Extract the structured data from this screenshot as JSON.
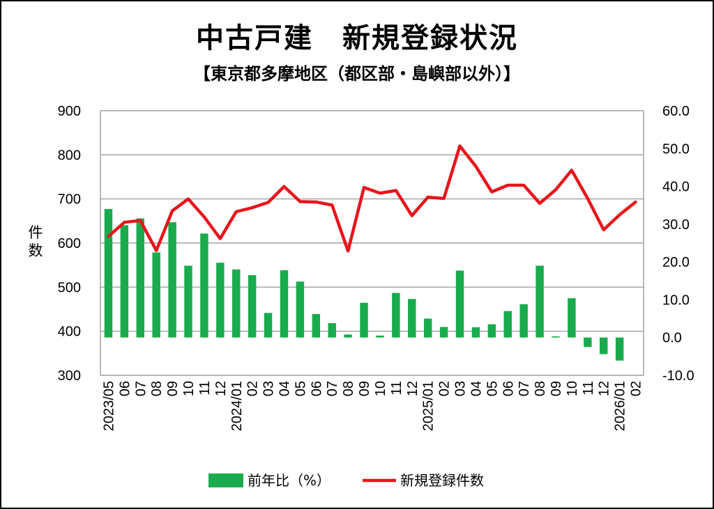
{
  "chart_data": {
    "type": "bar+line",
    "title": "中古戸建　新規登録状況",
    "subtitle": "【東京都多摩地区（都区部・島嶼部以外）】",
    "y_left_title": "件数",
    "y_left_ticks": [
      "900",
      "800",
      "700",
      "600",
      "500",
      "400",
      "300"
    ],
    "y_right_ticks": [
      "60.0",
      "50.0",
      "40.0",
      "30.0",
      "20.0",
      "10.0",
      "0.0",
      "-10.0"
    ],
    "y_left_range": [
      300,
      900
    ],
    "y_right_range": [
      -10,
      60
    ],
    "x_tick_labels": [
      "2023/05",
      "06",
      "07",
      "08",
      "09",
      "10",
      "11",
      "12",
      "2024/01",
      "02",
      "03",
      "04",
      "05",
      "06",
      "07",
      "08",
      "09",
      "10",
      "11",
      "12",
      "2025/01",
      "02",
      "03",
      "04",
      "05",
      "06",
      "07",
      "08",
      "09",
      "10",
      "11",
      "12",
      "2026/01",
      "02"
    ],
    "series": [
      {
        "name": "前年比（%）",
        "type": "bar",
        "axis": "right",
        "color": "#1aab4e",
        "values": [
          34.0,
          29.7,
          31.5,
          22.5,
          30.5,
          19.0,
          27.5,
          19.8,
          18.0,
          16.5,
          6.5,
          17.8,
          14.8,
          6.2,
          3.8,
          0.8,
          9.2,
          0.5,
          11.8,
          10.2,
          5.0,
          2.8,
          17.7,
          2.7,
          3.5,
          7.0,
          8.8,
          19.0,
          0.3,
          10.4,
          -2.5,
          -4.4,
          -6.1,
          null
        ]
      },
      {
        "name": "新規登録件数",
        "type": "line",
        "axis": "left",
        "color": "#e8141c",
        "values": [
          615,
          647,
          651,
          583,
          673,
          700,
          659,
          610,
          671,
          680,
          692,
          728,
          694,
          693,
          686,
          582,
          726,
          713,
          719,
          662,
          704,
          701,
          820,
          774,
          716,
          731,
          731,
          690,
          721,
          765,
          701,
          630,
          664,
          693
        ]
      }
    ],
    "legend_position": "bottom",
    "grid": true
  }
}
